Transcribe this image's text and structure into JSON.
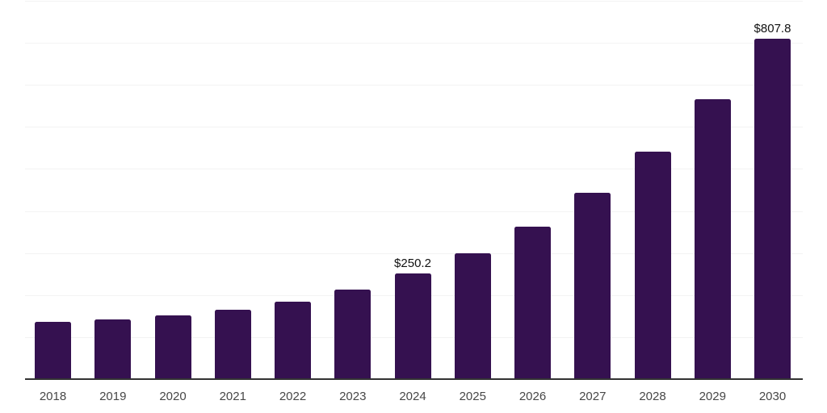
{
  "chart_data": {
    "type": "bar",
    "title": "",
    "xlabel": "",
    "ylabel": "",
    "categories": [
      "2018",
      "2019",
      "2020",
      "2021",
      "2022",
      "2023",
      "2024",
      "2025",
      "2026",
      "2027",
      "2028",
      "2029",
      "2030"
    ],
    "values": [
      134,
      140,
      150,
      163,
      182,
      212,
      250.2,
      297,
      361,
      441,
      539,
      664,
      807.8
    ],
    "data_labels": {
      "2024": "$250.2",
      "2030": "$807.8"
    },
    "ylim": [
      0,
      900
    ],
    "gridline_step": 100,
    "grid": true,
    "legend": false,
    "colors": {
      "bar": "#351150",
      "axis_line": "#333333",
      "gridline": "#f3f3f3",
      "tick_label": "#474747",
      "data_label": "#111111",
      "background": "#ffffff"
    }
  }
}
